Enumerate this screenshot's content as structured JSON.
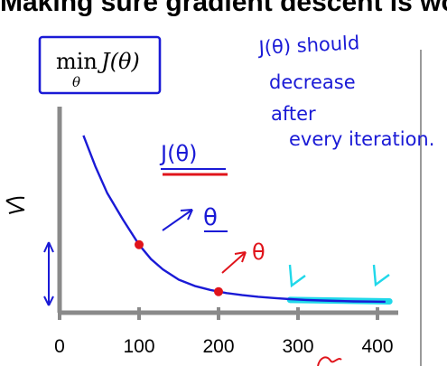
{
  "header": {
    "title": "Making sure gradient descent is wor"
  },
  "notes": {
    "line1": "J(θ) should",
    "line2": "decrease",
    "line3": "after",
    "line4": "every iteration."
  },
  "formula": {
    "op": "min",
    "sub": "θ",
    "fn": "J(θ)"
  },
  "labels": {
    "curve": "J(θ)",
    "theta_blue": "θ",
    "theta_red": "θ"
  },
  "colors": {
    "curve": "#1a1ad6",
    "red": "#e0141b",
    "highlight": "#20d8ea",
    "axis": "#808080"
  },
  "chart_data": {
    "type": "line",
    "xlabel": "",
    "ylabel": "",
    "xlim": [
      -10,
      420
    ],
    "ylim": [
      0,
      1
    ],
    "x_ticks": [
      0,
      100,
      200,
      300,
      400
    ],
    "series": [
      {
        "x": [
          30,
          45,
          60,
          80,
          100,
          115,
          130,
          150,
          170,
          190,
          210,
          230,
          250,
          270,
          290,
          310,
          330,
          350,
          370,
          390,
          410
        ],
        "y": [
          0.86,
          0.71,
          0.58,
          0.45,
          0.33,
          0.26,
          0.21,
          0.16,
          0.13,
          0.11,
          0.095,
          0.085,
          0.077,
          0.071,
          0.066,
          0.062,
          0.059,
          0.057,
          0.055,
          0.054,
          0.053
        ]
      }
    ],
    "markers": [
      {
        "x": 100,
        "y": 0.33
      },
      {
        "x": 200,
        "y": 0.102
      }
    ],
    "highlight_range": [
      290,
      415
    ]
  }
}
